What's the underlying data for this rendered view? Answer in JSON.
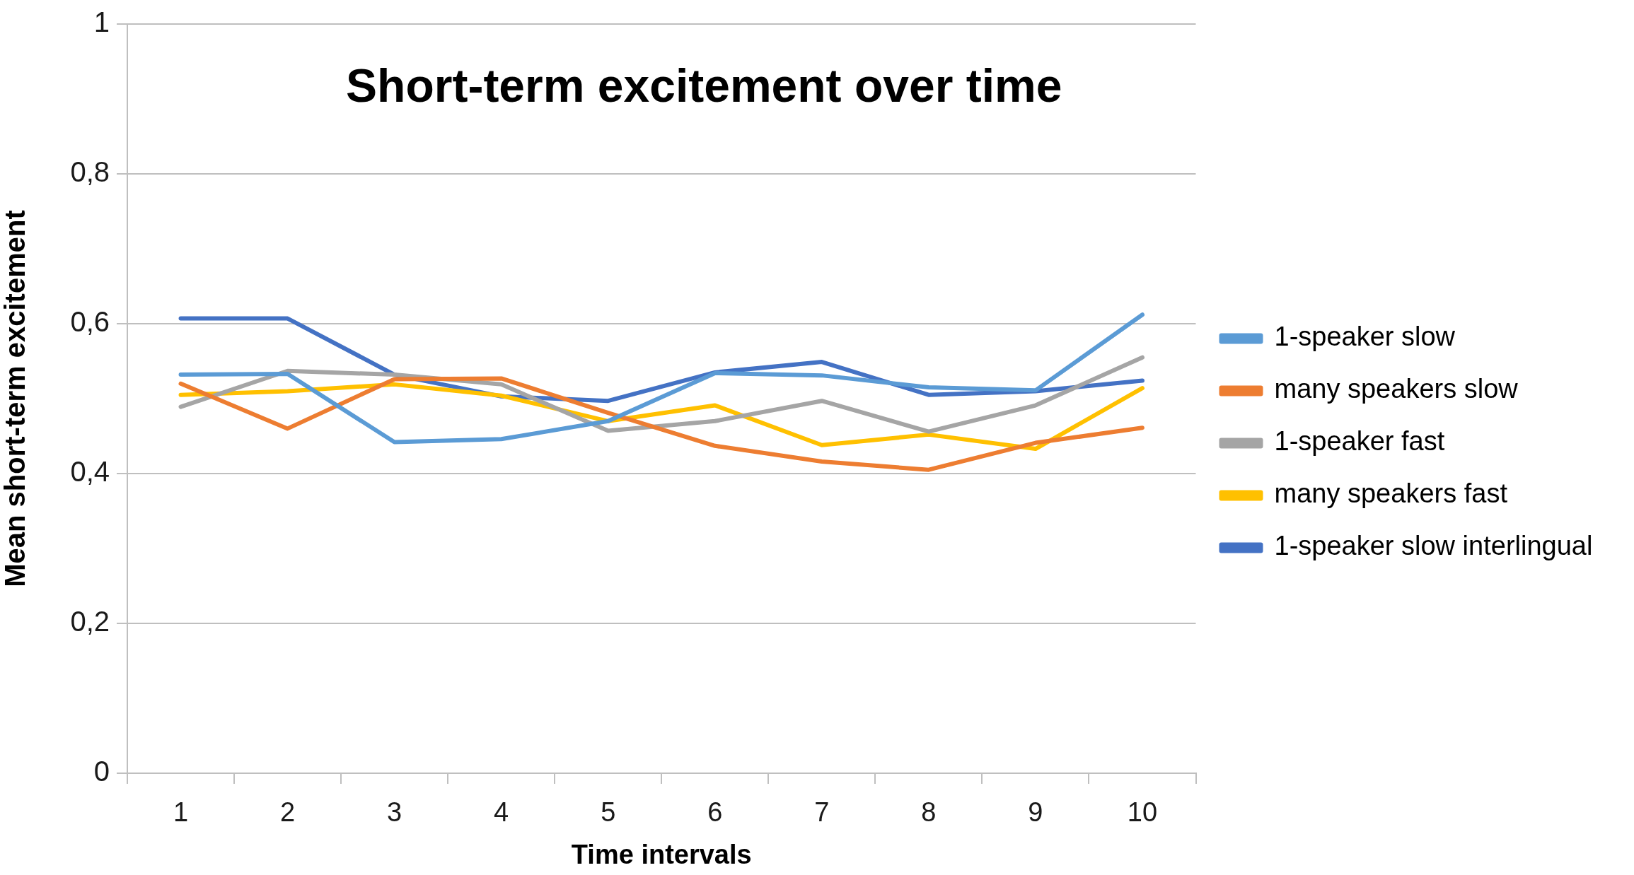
{
  "chart_data": {
    "type": "line",
    "title": "Short-term excitement over time",
    "xlabel": "Time intervals",
    "ylabel": "Mean short-term excitement",
    "categories": [
      "1",
      "2",
      "3",
      "4",
      "5",
      "6",
      "7",
      "8",
      "9",
      "10"
    ],
    "ylim": [
      0,
      1
    ],
    "yticks": [
      0,
      {
        "value": 0.2,
        "label": "0,2"
      },
      {
        "value": 0.4,
        "label": "0,4"
      },
      {
        "value": 0.6,
        "label": "0,6"
      },
      {
        "value": 0.8,
        "label": "0,8"
      },
      1
    ],
    "grid": "y",
    "legend": "right",
    "marker": "none",
    "line_style": "solid",
    "series": [
      {
        "name": "1-speaker slow",
        "color": "#5b9bd5",
        "values": [
          0.532,
          0.533,
          0.442,
          0.446,
          0.47,
          0.534,
          0.531,
          0.515,
          0.511,
          0.612
        ]
      },
      {
        "name": "many speakers slow",
        "color": "#ed7d31",
        "values": [
          0.52,
          0.46,
          0.526,
          0.527,
          0.481,
          0.437,
          0.416,
          0.405,
          0.441,
          0.461
        ]
      },
      {
        "name": "1-speaker fast",
        "color": "#a5a5a5",
        "values": [
          0.489,
          0.537,
          0.532,
          0.519,
          0.457,
          0.47,
          0.497,
          0.456,
          0.491,
          0.555
        ]
      },
      {
        "name": "many speakers fast",
        "color": "#ffc000",
        "values": [
          0.505,
          0.51,
          0.519,
          0.504,
          0.47,
          0.491,
          0.438,
          0.452,
          0.433,
          0.514
        ]
      },
      {
        "name": "1-speaker slow interlingual",
        "color": "#4472c4",
        "values": [
          0.607,
          0.607,
          0.532,
          0.503,
          0.497,
          0.535,
          0.549,
          0.505,
          0.51,
          0.524
        ]
      }
    ]
  }
}
